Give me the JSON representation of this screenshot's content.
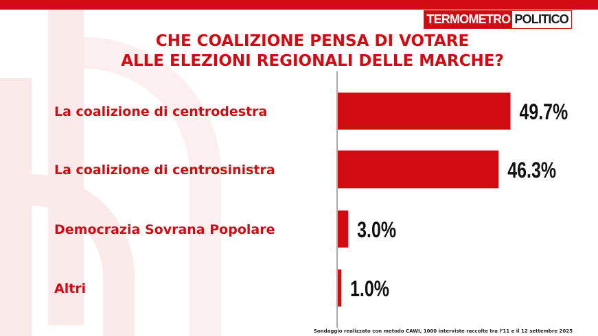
{
  "brand": {
    "logo_part1": "TERMOMETRO",
    "logo_part2": "POLITICO",
    "accent_color": "#d20a11"
  },
  "chart_data": {
    "type": "bar",
    "orientation": "horizontal",
    "title": "CHE COALIZIONE PENSA DI VOTARE ALLE ELEZIONI REGIONALI DELLE MARCHE?",
    "title_lines": [
      "CHE COALIZIONE PENSA DI VOTARE",
      "ALLE ELEZIONI REGIONALI DELLE MARCHE?"
    ],
    "categories": [
      "La coalizione di centrodestra",
      "La coalizione di centrosinistra",
      "Democrazia Sovrana Popolare",
      "Altri"
    ],
    "values": [
      49.7,
      46.3,
      3.0,
      1.0
    ],
    "value_labels": [
      "49.7%",
      "46.3%",
      "3.0%",
      "1.0%"
    ],
    "xlim": [
      0,
      100
    ],
    "grid": false,
    "legend": "none",
    "bar_color": "#d20a11"
  },
  "footnote": "Sondaggio realizzato con metodo CAWI, 1000 interviste raccolte tra l’11 e il 12  settembre 2025"
}
